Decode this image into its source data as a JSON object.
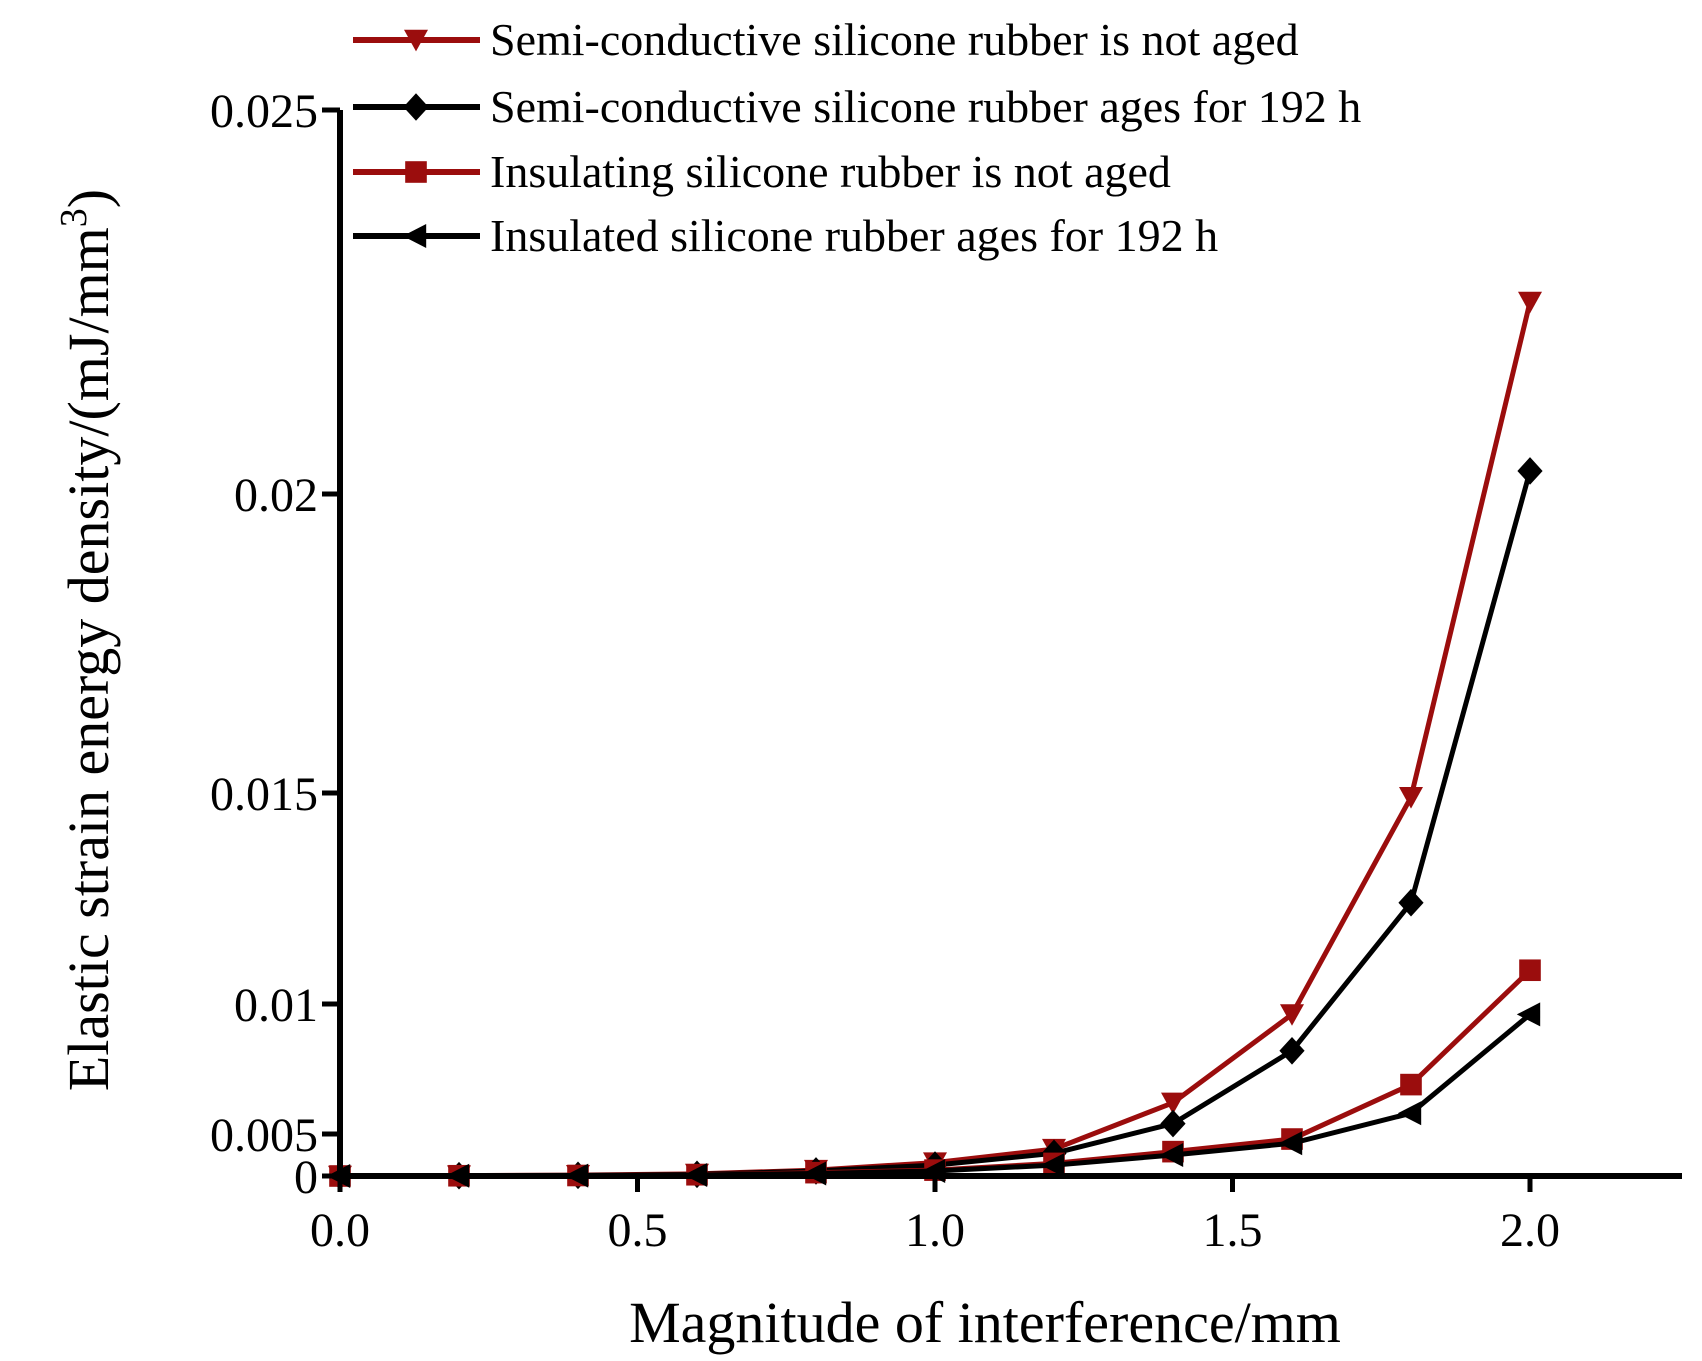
{
  "chart_data": {
    "type": "line",
    "xlabel": "Magnitude of interference/mm",
    "ylabel": "Elastic strain energy density/(mJ/mm",
    "ylabel_superscript": "3",
    "ylabel_close": ")",
    "xlim": [
      0,
      2.25
    ],
    "ylim": [
      0,
      0.025
    ],
    "x_ticks": [
      0.0,
      0.5,
      1.0,
      1.5,
      2.0
    ],
    "x_tick_labels": [
      "0.0",
      "0.5",
      "1.0",
      "1.5",
      "2.0"
    ],
    "y_ticks": [
      0,
      0.005,
      0.01,
      0.015,
      0.02,
      0.025
    ],
    "y_tick_labels": [
      "0",
      "0.005",
      "0.01",
      "0.015",
      "0.02",
      "0.025"
    ],
    "legend_position": "top",
    "grid": false,
    "x": [
      0,
      0.2,
      0.4,
      0.6,
      0.8,
      1.0,
      1.2,
      1.4,
      1.6,
      1.8,
      2.0
    ],
    "series": [
      {
        "name": "Semi-conductive silicone rubber is not aged",
        "color": "#9b0d0d",
        "marker": "triangle-down",
        "values": [
          0,
          5e-05,
          0.0001,
          0.00025,
          0.0007,
          0.0016,
          0.0032,
          0.0062,
          0.0096,
          0.0149,
          0.0225
        ]
      },
      {
        "name": "Semi-conductive silicone rubber ages for 192 h",
        "color": "#000000",
        "marker": "diamond",
        "values": [
          0,
          4e-05,
          8e-05,
          0.0002,
          0.0006,
          0.0013,
          0.0027,
          0.0054,
          0.0082,
          0.0124,
          0.0203
        ]
      },
      {
        "name": "Insulating silicone rubber is not aged",
        "color": "#9b0d0d",
        "marker": "square",
        "values": [
          0,
          3e-05,
          6e-05,
          0.00015,
          0.0004,
          0.0007,
          0.0015,
          0.0029,
          0.0044,
          0.0069,
          0.0108
        ]
      },
      {
        "name": "Insulated silicone rubber ages for 192 h",
        "color": "#000000",
        "marker": "triangle-left",
        "values": [
          0,
          3e-05,
          5e-05,
          0.00012,
          0.0003,
          0.0006,
          0.0013,
          0.0025,
          0.0039,
          0.0058,
          0.0096
        ]
      }
    ]
  }
}
